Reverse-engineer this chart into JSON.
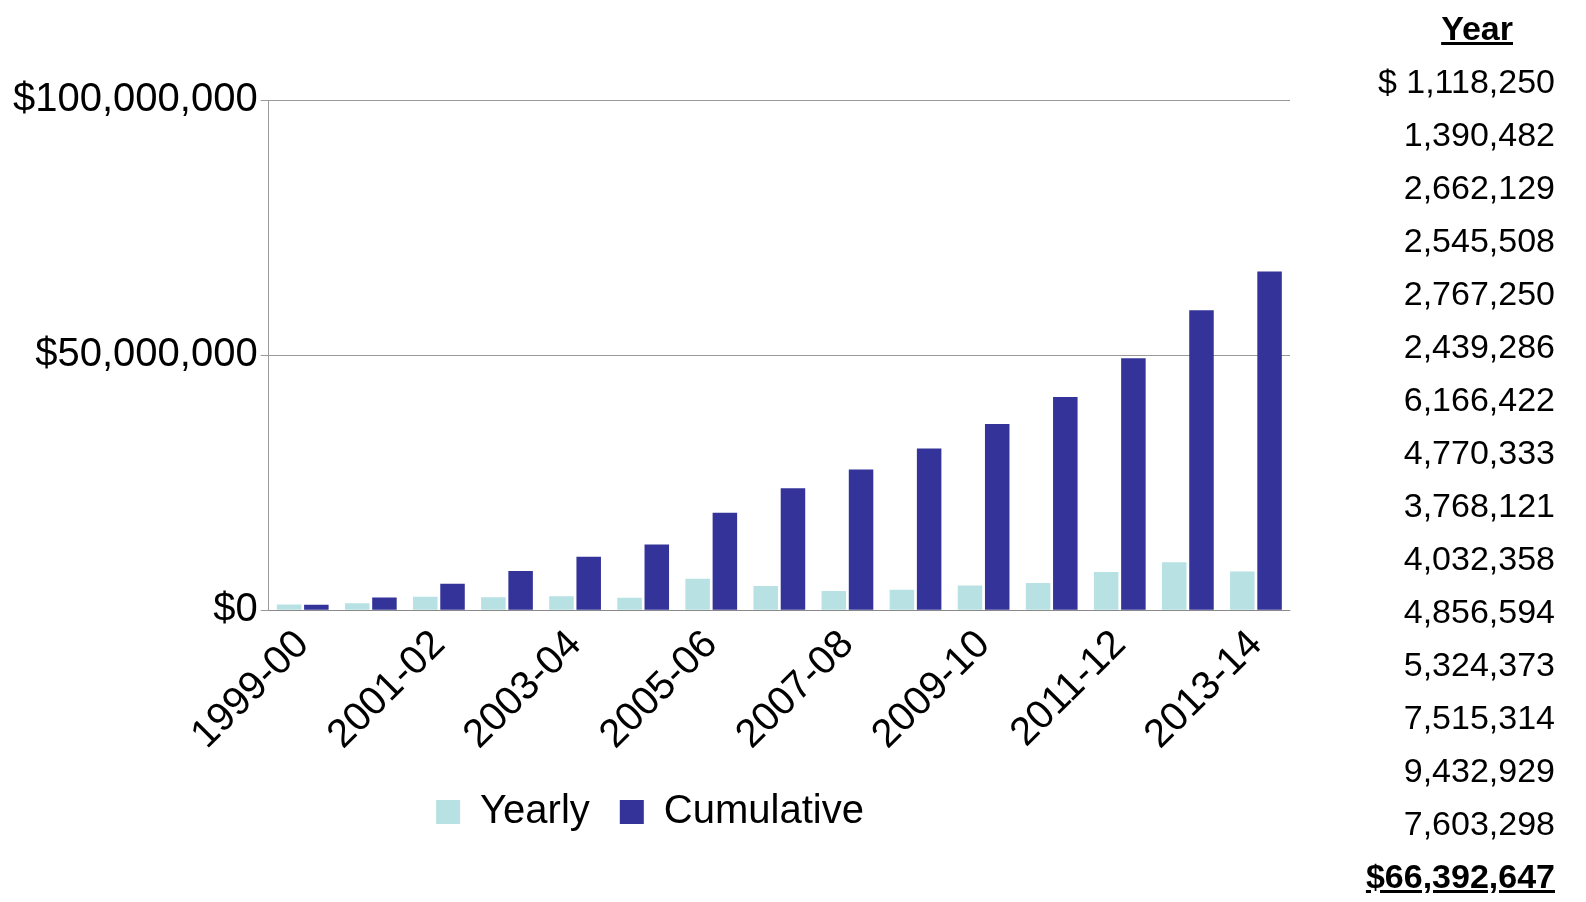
{
  "chart_data": {
    "type": "bar",
    "categories": [
      "1999-00",
      null,
      "2001-02",
      null,
      "2003-04",
      null,
      "2005-06",
      null,
      "2007-08",
      null,
      "2009-10",
      null,
      "2011-12",
      null,
      "2013-14"
    ],
    "series": [
      {
        "name": "Yearly",
        "color": "#b7e1e3",
        "values": [
          1118250,
          1390482,
          2662129,
          2545508,
          2767250,
          2439286,
          6166422,
          4770333,
          3768121,
          4032358,
          4856594,
          5324373,
          7515314,
          9432929,
          7603298
        ]
      },
      {
        "name": "Cumulative",
        "color": "#333399",
        "values": [
          1100000,
          2500000,
          5200000,
          7700000,
          10500000,
          12900000,
          19100000,
          23900000,
          27600000,
          31700000,
          36500000,
          41800000,
          49400000,
          58800000,
          66400000
        ]
      }
    ],
    "ylim": [
      0,
      100000000
    ],
    "yticks": [
      {
        "value": 0,
        "label": "$0"
      },
      {
        "value": 50000000,
        "label": "$50,000,000"
      },
      {
        "value": 100000000,
        "label": "$100,000,000"
      }
    ],
    "grid": "y",
    "legend": "bottom",
    "annotations": [
      "Year",
      "$ 1,118,250",
      "1,390,482",
      "2,662,129",
      "2,545,508",
      "2,767,250",
      "2,439,286",
      "6,166,422",
      "4,770,333",
      "3,768,121",
      "4,032,358",
      "4,856,594",
      "5,324,373",
      "7,515,314",
      "9,432,929",
      "7,603,298",
      "$66,392,647"
    ]
  }
}
